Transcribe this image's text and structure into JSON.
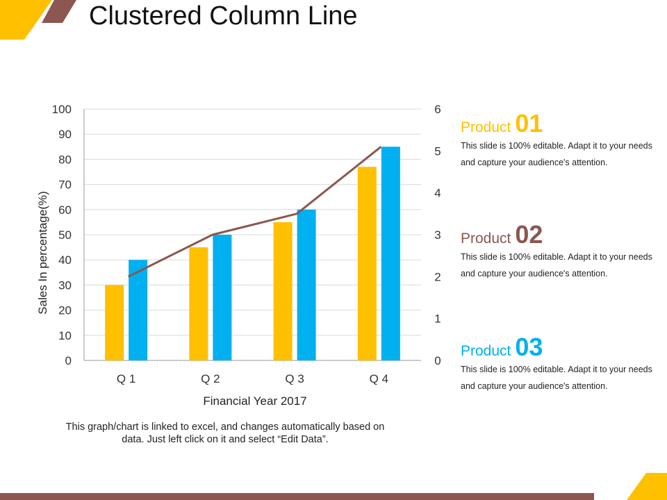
{
  "slide": {
    "title": "Clustered Column Line",
    "note": "This graph/chart is linked to excel, and changes automatically based on data. Just left click on it and select “Edit Data”."
  },
  "colors": {
    "series_1": "#FFC000",
    "series_2": "#00B0F0",
    "line": "#8B5750",
    "grid": "#D9D9D9",
    "accent_yellow": "#FFC000",
    "accent_brown": "#8B5750",
    "accent_blue": "#00B0F0"
  },
  "chart_data": {
    "type": "bar",
    "categories": [
      "Q 1",
      "Q 2",
      "Q 3",
      "Q 4"
    ],
    "series": [
      {
        "values": [
          30,
          45,
          55,
          77
        ]
      },
      {
        "values": [
          40,
          50,
          60,
          85
        ]
      }
    ],
    "line_series": {
      "axis": "right",
      "values": [
        2,
        3,
        3.5,
        5.1
      ]
    },
    "xlabel": "Financial Year 2017",
    "ylabel": "Sales In percentage(%)",
    "ylim": [
      0,
      100
    ],
    "y_ticks": [
      0,
      10,
      20,
      30,
      40,
      50,
      60,
      70,
      80,
      90,
      100
    ],
    "y2lim": [
      0,
      6
    ],
    "y2_ticks": [
      0,
      1,
      2,
      3,
      4,
      5,
      6
    ],
    "grid": true,
    "legend": "none"
  },
  "products": [
    {
      "word": "Product",
      "number": "01",
      "color": "#FFC000",
      "description": "This slide is 100% editable. Adapt it to your needs and capture your audience's attention."
    },
    {
      "word": "Product",
      "number": "02",
      "color": "#8B5750",
      "description": "This slide is 100% editable. Adapt it to your needs and capture your audience's attention."
    },
    {
      "word": "Product",
      "number": "03",
      "color": "#00B0F0",
      "description": "This slide is 100% editable. Adapt it to your needs and capture your audience's attention."
    }
  ]
}
